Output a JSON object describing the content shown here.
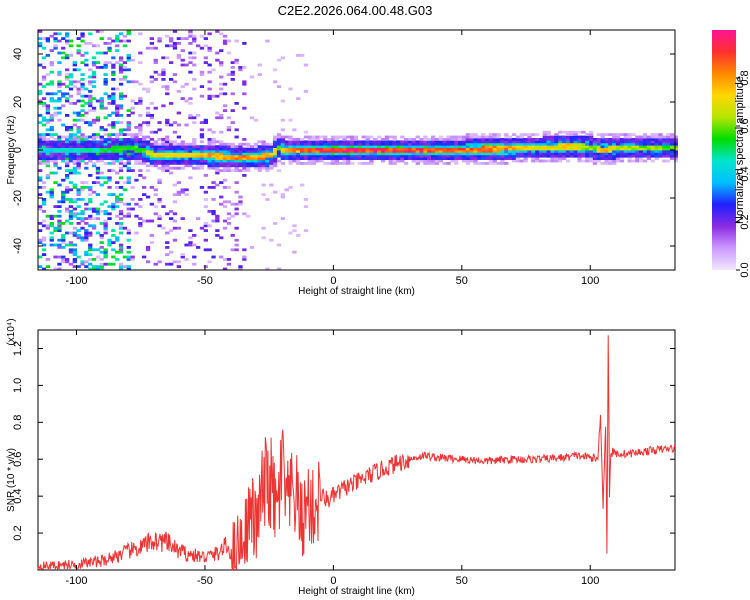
{
  "title": "C2E2.2026.064.00.48.G03",
  "chart_data": [
    {
      "type": "heatmap",
      "xlabel": "Height of straight line (km)",
      "ylabel": "Frequency (Hz)",
      "xlim": [
        -115,
        133
      ],
      "ylim": [
        -50,
        50
      ],
      "xticks": [
        -100,
        -50,
        0,
        50,
        100
      ],
      "yticks": [
        -40,
        -20,
        0,
        20,
        40
      ],
      "xtick_labels": [
        "-100",
        "-50",
        "0",
        "50",
        "100"
      ],
      "ytick_labels": [
        "-40",
        "-20",
        "0",
        "20",
        "40"
      ],
      "colorbar": {
        "label": "Normalized spectral amplitude",
        "range": [
          0,
          1
        ],
        "ticks": [
          0.0,
          0.2,
          0.4,
          0.6,
          0.8
        ],
        "tick_labels": [
          "0.0",
          "0.2",
          "0.4",
          "0.6",
          "0.8"
        ],
        "colors": [
          "#f2e6ff",
          "#cc99ff",
          "#8a2be2",
          "#2020ff",
          "#00bfff",
          "#00e5cc",
          "#00dd00",
          "#b5e600",
          "#ffd700",
          "#ff8800",
          "#ff3030",
          "#ff1493"
        ]
      },
      "ridge": {
        "x": [
          -115,
          -100,
          -90,
          -80,
          -75,
          -70,
          -60,
          -50,
          -40,
          -30,
          -25,
          -22,
          -20,
          -15,
          -10,
          -5,
          0,
          10,
          20,
          30,
          40,
          50,
          60,
          70,
          80,
          90,
          95,
          100,
          105,
          110,
          120,
          133
        ],
        "freq": [
          0,
          0,
          0,
          1,
          0,
          -2,
          -2,
          -2,
          -3,
          -3,
          -2,
          1,
          0,
          0,
          0,
          0,
          0,
          0,
          0,
          0,
          0,
          0,
          0.5,
          1,
          1,
          1.5,
          1.5,
          1,
          0,
          1,
          1,
          1
        ],
        "amp": [
          0.4,
          0.45,
          0.5,
          0.55,
          0.6,
          0.7,
          0.72,
          0.75,
          0.8,
          0.8,
          0.75,
          0.6,
          0.75,
          0.8,
          0.85,
          0.9,
          0.95,
          0.9,
          0.9,
          0.88,
          0.86,
          0.85,
          0.82,
          0.78,
          0.7,
          0.72,
          0.65,
          0.6,
          0.75,
          0.65,
          0.6,
          0.6
        ]
      }
    },
    {
      "type": "line",
      "xlabel": "Height of straight line (km)",
      "ylabel": "SNR (10 * v/v)",
      "multiplier": "(x10⁴)",
      "xlim": [
        -115,
        133
      ],
      "ylim": [
        0,
        1.3
      ],
      "xticks": [
        -100,
        -50,
        0,
        50,
        100
      ],
      "yticks": [
        0.2,
        0.4,
        0.6,
        0.8,
        1.0,
        1.2
      ],
      "xtick_labels": [
        "-100",
        "-50",
        "0",
        "50",
        "100"
      ],
      "ytick_labels": [
        "0.2",
        "0.4",
        "0.6",
        "0.8",
        "1.0",
        "1.2"
      ],
      "color": "#ee3333",
      "series": [
        {
          "x": [
            -115,
            -100,
            -90,
            -80,
            -75,
            -70,
            -65,
            -60,
            -55,
            -50,
            -45,
            -42,
            -40,
            -35,
            -32,
            -30,
            -28,
            -25,
            -22,
            -20,
            -18,
            -15,
            -12,
            -10,
            -8,
            -5,
            -2,
            0,
            5,
            10,
            15,
            20,
            25,
            30,
            35,
            40,
            50,
            60,
            70,
            80,
            90,
            95,
            100,
            103,
            104,
            105,
            106,
            106.5,
            107,
            107.5,
            108,
            110,
            115,
            120,
            125,
            133
          ],
          "y": [
            0.02,
            0.03,
            0.05,
            0.1,
            0.12,
            0.16,
            0.15,
            0.1,
            0.08,
            0.07,
            0.09,
            0.13,
            0.1,
            0.18,
            0.32,
            0.22,
            0.4,
            0.5,
            0.3,
            0.55,
            0.35,
            0.42,
            0.25,
            0.38,
            0.32,
            0.4,
            0.38,
            0.4,
            0.45,
            0.48,
            0.52,
            0.55,
            0.58,
            0.6,
            0.62,
            0.61,
            0.6,
            0.59,
            0.6,
            0.6,
            0.61,
            0.62,
            0.61,
            0.6,
            0.85,
            0.35,
            0.8,
            0.1,
            1.28,
            0.4,
            0.64,
            0.63,
            0.63,
            0.64,
            0.65,
            0.66
          ]
        }
      ]
    }
  ]
}
